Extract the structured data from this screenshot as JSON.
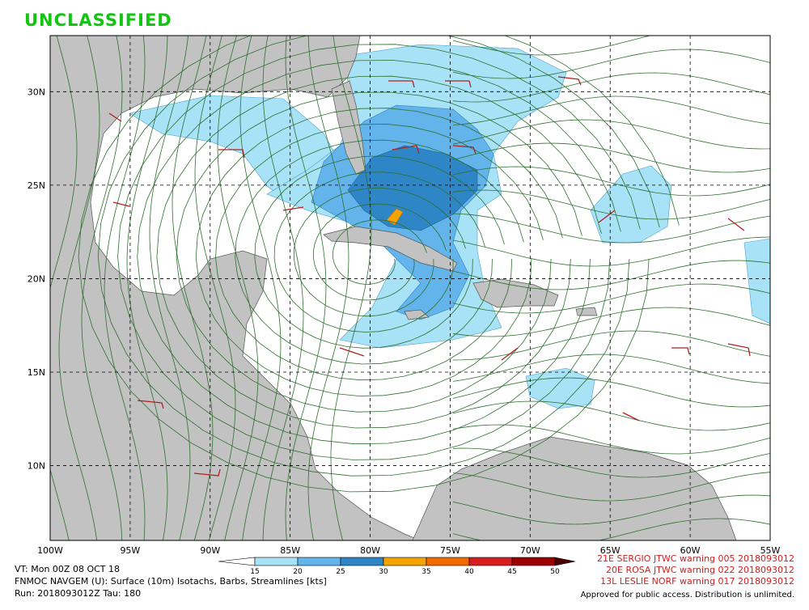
{
  "header": {
    "classification": "UNCLASSIFIED"
  },
  "map": {
    "xlim": [
      -100,
      -55
    ],
    "ylim": [
      6,
      33
    ],
    "lon_ticks": [
      {
        "value": -100,
        "label": "100W"
      },
      {
        "value": -95,
        "label": "95W"
      },
      {
        "value": -90,
        "label": "90W"
      },
      {
        "value": -85,
        "label": "85W"
      },
      {
        "value": -80,
        "label": "80W"
      },
      {
        "value": -75,
        "label": "75W"
      },
      {
        "value": -70,
        "label": "70W"
      },
      {
        "value": -65,
        "label": "65W"
      },
      {
        "value": -60,
        "label": "60W"
      },
      {
        "value": -55,
        "label": "55W"
      }
    ],
    "lat_ticks": [
      {
        "value": 30,
        "label": "30N"
      },
      {
        "value": 25,
        "label": "25N"
      },
      {
        "value": 20,
        "label": "20N"
      },
      {
        "value": 15,
        "label": "15N"
      },
      {
        "value": 10,
        "label": "10N"
      }
    ]
  },
  "colorbar": {
    "levels": [
      15,
      20,
      25,
      30,
      35,
      40,
      45,
      50
    ],
    "colors": [
      "#a8e2f6",
      "#62b4ea",
      "#2e86c6",
      "#f5a300",
      "#f06a00",
      "#d62020",
      "#9c0000",
      "#4a0000"
    ]
  },
  "footer": {
    "valid_time": "VT: Mon 00Z 08 OCT 18",
    "model": "FNMOC NAVGEM (U): Surface (10m) Isotachs, Barbs, Streamlines [kts]",
    "run": "Run: 2018093012Z Tau: 180",
    "warnings": [
      "21E SERGIO JTWC warning 005 2018093012",
      "20E ROSA JTWC warning 022 2018093012",
      "13L LESLIE NORF warning 017 2018093012"
    ],
    "release": "Approved for public access. Distribution is unlimited."
  }
}
